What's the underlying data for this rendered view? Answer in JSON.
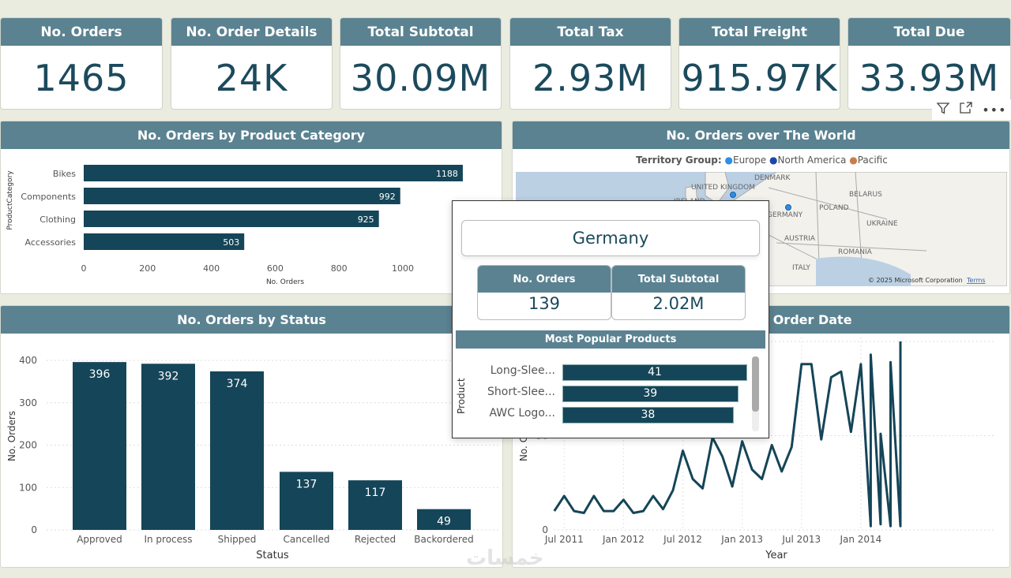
{
  "kpis": [
    {
      "label": "No. Orders",
      "value": "1465"
    },
    {
      "label": "No. Order Details",
      "value": "24K"
    },
    {
      "label": "Total Subtotal",
      "value": "30.09M"
    },
    {
      "label": "Total Tax",
      "value": "2.93M"
    },
    {
      "label": "Total Freight",
      "value": "915.97K"
    },
    {
      "label": "Total Due",
      "value": "33.93M"
    }
  ],
  "visual_header_icons": [
    "filter-icon",
    "focus-mode-icon",
    "more-options-icon"
  ],
  "colors": {
    "header": "#5b8291",
    "bar": "#154558",
    "europe": "#2b8fe6",
    "north_america": "#1a47a8",
    "pacific": "#c97d4a"
  },
  "category_chart": {
    "title": "No. Orders by Product Category",
    "chart_data": {
      "type": "bar",
      "orientation": "horizontal",
      "categories": [
        "Bikes",
        "Components",
        "Clothing",
        "Accessories"
      ],
      "values": [
        1188,
        992,
        925,
        503
      ],
      "xlabel": "No. Orders",
      "ylabel": "ProductCategory",
      "xticks": [
        "0",
        "200",
        "400",
        "600",
        "800",
        "1000"
      ],
      "xlim": [
        0,
        1200
      ]
    }
  },
  "map": {
    "title": "No. Orders over The World",
    "legend_title": "Territory Group:",
    "legend": [
      "Europe",
      "North America",
      "Pacific"
    ],
    "labels": [
      "DENMARK",
      "UNITED KINGDOM",
      "IRELAND",
      "GERMANY",
      "POLAND",
      "BELARUS",
      "UKRAINE",
      "AUSTRIA",
      "ROMANIA",
      "ITALY"
    ],
    "copyright": "© 2025 Microsoft Corporation",
    "terms": "Terms"
  },
  "status_chart": {
    "title": "No. Orders by Status",
    "chart_data": {
      "type": "bar",
      "categories": [
        "Approved",
        "In process",
        "Shipped",
        "Cancelled",
        "Rejected",
        "Backordered"
      ],
      "values": [
        396,
        392,
        374,
        137,
        117,
        49
      ],
      "xlabel": "Status",
      "ylabel": "No. Orders",
      "yticks": [
        "0",
        "100",
        "200",
        "300",
        "400"
      ],
      "ylim": [
        0,
        400
      ]
    }
  },
  "line_chart": {
    "title": "No. Orders by Order Date",
    "chart_data": {
      "type": "line",
      "xlabel": "Year",
      "ylabel": "No. Orders",
      "yticks": [
        "0",
        "50",
        "100"
      ],
      "xticks": [
        "Jul 2011",
        "Jan 2012",
        "Jul 2012",
        "Jan 2013",
        "Jul 2013",
        "Jan 2014"
      ],
      "x": [
        "2011-06",
        "2011-07",
        "2011-08",
        "2011-09",
        "2011-10",
        "2011-11",
        "2011-12",
        "2012-01",
        "2012-02",
        "2012-03",
        "2012-04",
        "2012-05",
        "2012-06",
        "2012-07",
        "2012-08",
        "2012-09",
        "2012-10",
        "2012-11",
        "2012-12",
        "2013-01",
        "2013-02",
        "2013-03",
        "2013-04",
        "2013-05",
        "2013-06",
        "2013-07",
        "2013-08",
        "2013-09",
        "2013-10",
        "2013-11",
        "2013-12",
        "2014-01",
        "2014-02",
        "2014-02",
        "2014-03",
        "2014-03",
        "2014-04",
        "2014-04",
        "2014-05",
        "2014-05"
      ],
      "values": [
        10,
        18,
        10,
        9,
        18,
        10,
        10,
        16,
        9,
        10,
        18,
        11,
        21,
        42,
        27,
        22,
        49,
        39,
        23,
        47,
        32,
        27,
        45,
        31,
        44,
        88,
        88,
        48,
        81,
        84,
        52,
        88,
        2,
        93,
        3,
        51,
        2,
        89,
        2,
        100
      ]
    }
  },
  "tooltip": {
    "country": "Germany",
    "cards": [
      {
        "label": "No. Orders",
        "value": "139"
      },
      {
        "label": "Total Subtotal",
        "value": "2.02M"
      }
    ],
    "products_title": "Most Popular Products",
    "axis_label": "Product",
    "products": [
      {
        "name": "Long-Slee...",
        "value": 41
      },
      {
        "name": "Short-Slee...",
        "value": 39
      },
      {
        "name": "AWC Logo...",
        "value": 38
      }
    ]
  },
  "watermark": "خمسات"
}
